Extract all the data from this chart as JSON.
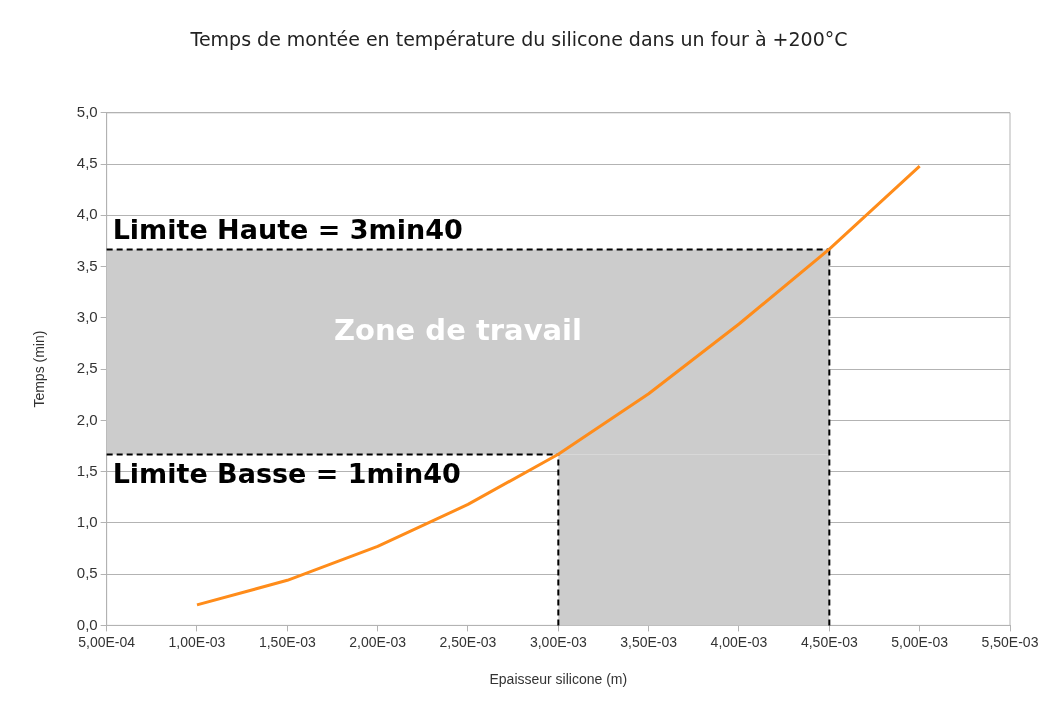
{
  "chart_data": {
    "type": "line",
    "title": "Temps de montée en température du silicone dans un four à +200°C",
    "xlabel": "Epaisseur silicone (m)",
    "ylabel": "Temps (min)",
    "categories": [
      "5,00E-04",
      "1,00E-03",
      "1,50E-03",
      "2,00E-03",
      "2,50E-03",
      "3,00E-03",
      "3,50E-03",
      "4,00E-03",
      "4,50E-03",
      "5,00E-03",
      "5,50E-03"
    ],
    "series": [
      {
        "color": "#ff8c1a",
        "values": [
          null,
          0.2,
          0.44,
          0.77,
          1.18,
          1.67,
          2.26,
          2.94,
          3.67,
          4.48,
          null
        ]
      }
    ],
    "ylim": [
      0,
      5
    ],
    "yticks": [
      {
        "value": 0,
        "label": "0,0"
      },
      {
        "value": 0.5,
        "label": "0,5"
      },
      {
        "value": 1,
        "label": "1,0"
      },
      {
        "value": 1.5,
        "label": "1,5"
      },
      {
        "value": 2,
        "label": "2,0"
      },
      {
        "value": 2.5,
        "label": "2,5"
      },
      {
        "value": 3,
        "label": "3,0"
      },
      {
        "value": 3.5,
        "label": "3,5"
      },
      {
        "value": 4,
        "label": "4,0"
      },
      {
        "value": 4.5,
        "label": "4,5"
      },
      {
        "value": 5,
        "label": "5,0"
      }
    ],
    "grid": "y",
    "legend": false,
    "marker": "none",
    "line_style": "solid",
    "annotations": [
      "Limite Haute = 3min40",
      "Limite Basse = 1min40"
    ],
    "ref_lines": [
      {
        "axis": "y",
        "value": 3.667,
        "color": "#000000",
        "line_style": "dashed"
      },
      {
        "axis": "y",
        "value": 1.667,
        "color": "#000000",
        "line_style": "dashed"
      },
      {
        "axis": "x",
        "value": "3,00E-03",
        "color": "#000000",
        "line_style": "dashed"
      },
      {
        "axis": "x",
        "value": "4,50E-03",
        "color": "#000000",
        "line_style": "dashed"
      }
    ],
    "bands": [
      {
        "axis": "y",
        "from": 1.667,
        "to": 3.667,
        "label": "Zone de travail",
        "color": "#cccccc"
      },
      {
        "axis": "x",
        "from": "3,00E-03",
        "to": "4,50E-03",
        "color": "#cccccc"
      }
    ]
  }
}
